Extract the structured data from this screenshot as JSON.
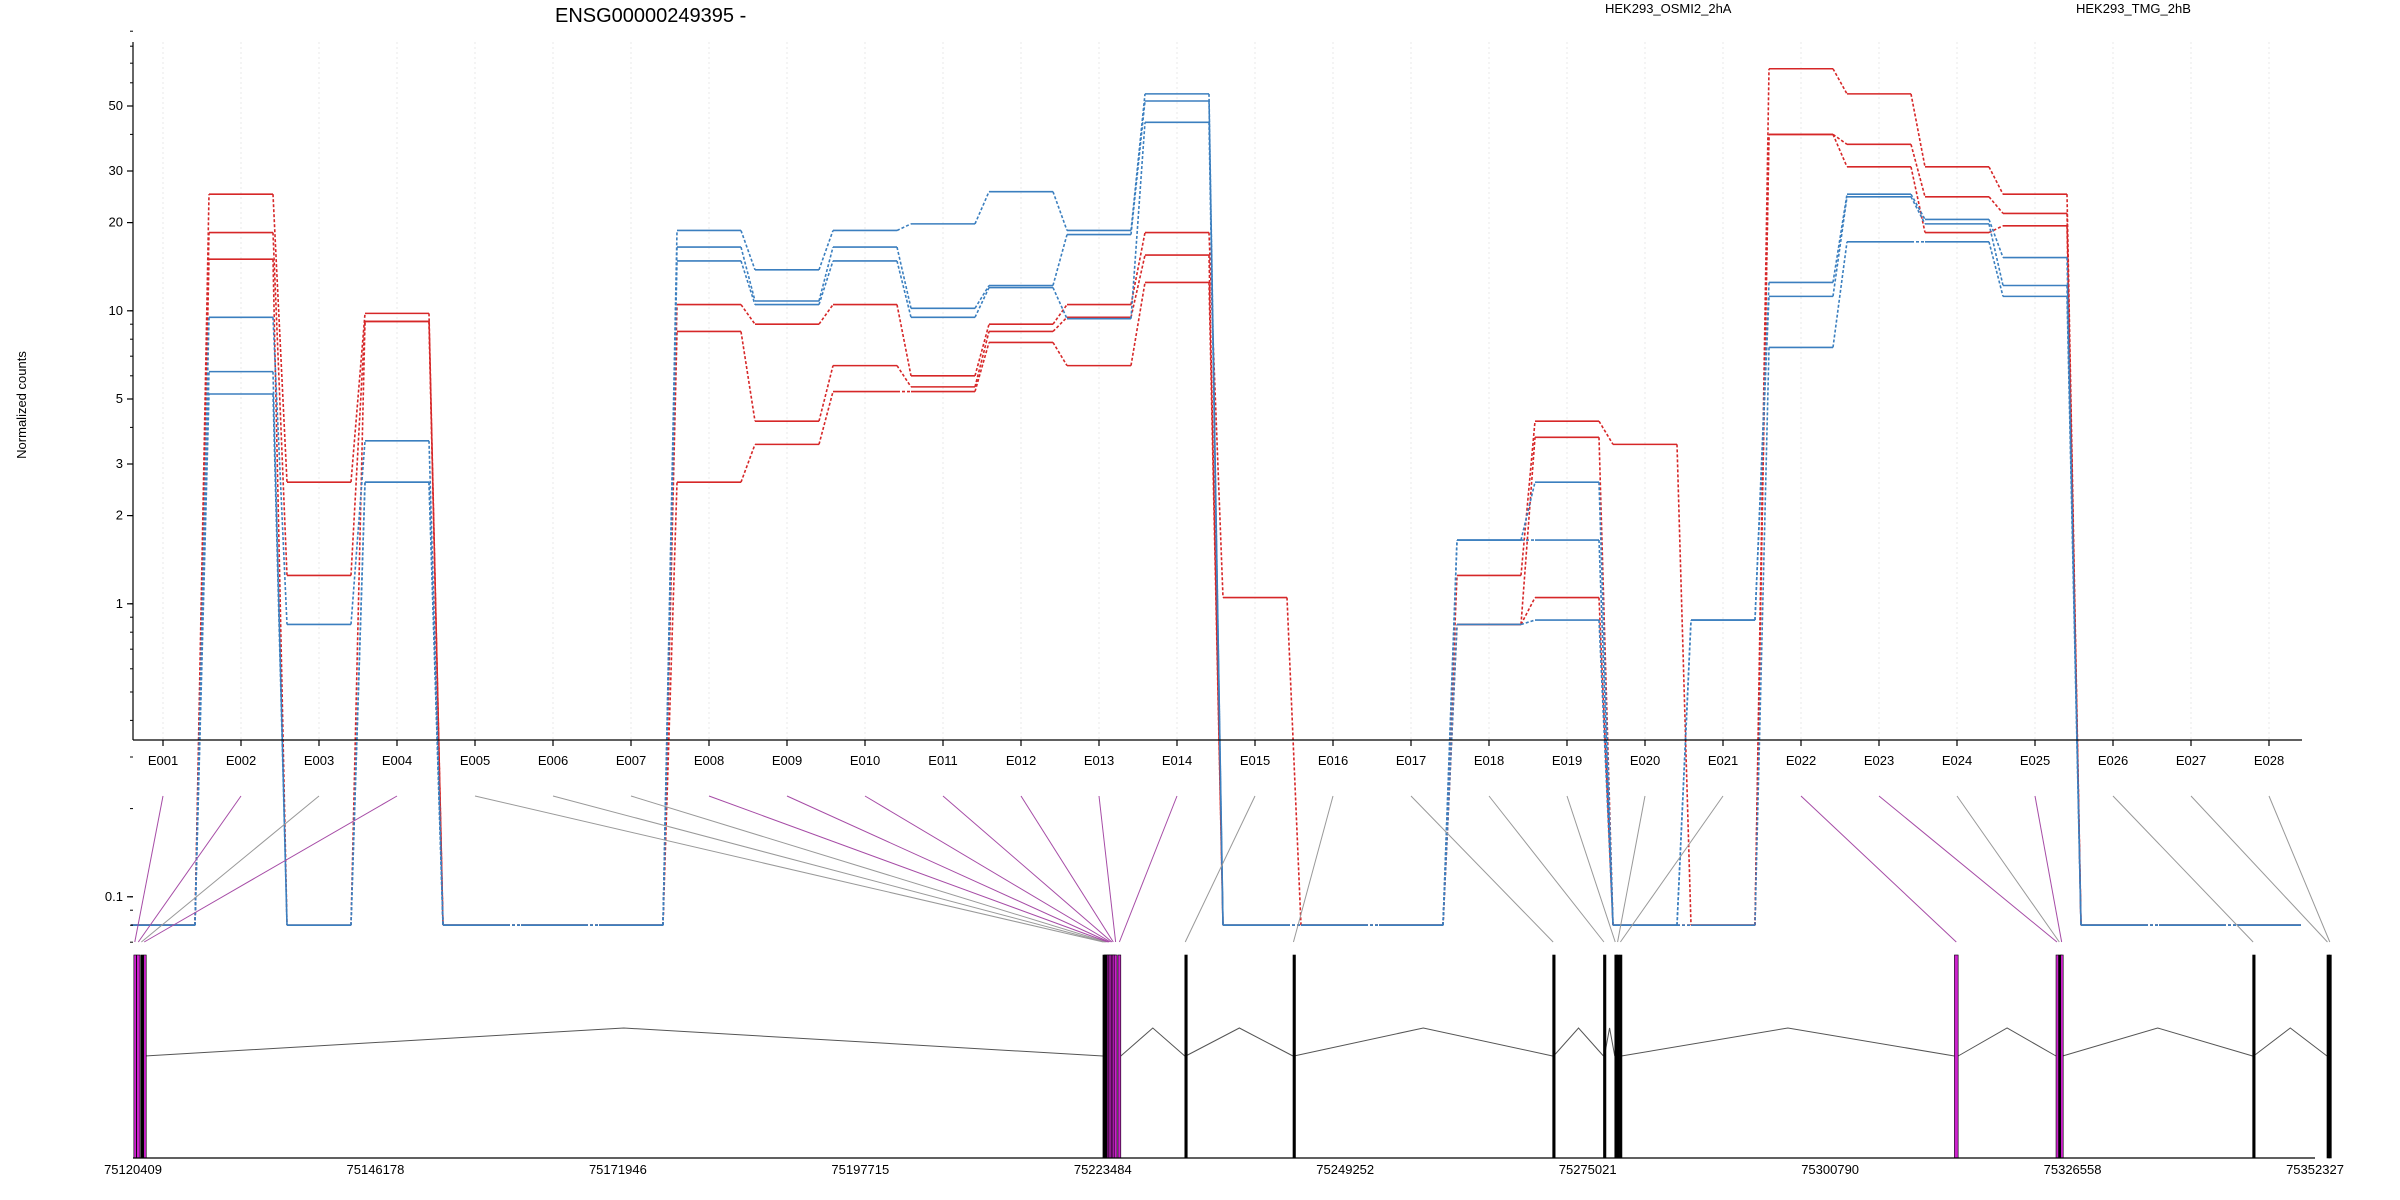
{
  "chart_data": {
    "type": "line",
    "title": "ENSG00000249395 -",
    "ylabel": "Normalized counts",
    "yscale": "log",
    "ylim": [
      0.07,
      90
    ],
    "yticks": [
      0.1,
      1,
      2,
      3,
      5,
      10,
      20,
      30,
      50
    ],
    "categories": [
      "E001",
      "E002",
      "E003",
      "E004",
      "E005",
      "E006",
      "E007",
      "E008",
      "E009",
      "E010",
      "E011",
      "E012",
      "E013",
      "E014",
      "E015",
      "E016",
      "E017",
      "E018",
      "E019",
      "E020",
      "E021",
      "E022",
      "E023",
      "E024",
      "E025",
      "E026",
      "E027",
      "E028"
    ],
    "legend": [
      {
        "label": "HEK293_OSMI2_2hA",
        "color": "#d62728"
      },
      {
        "label": "HEK293_TMG_2hB",
        "color": "#3b7fbf"
      }
    ],
    "series": [
      {
        "group": "HEK293_OSMI2_2hA",
        "color": "#d62728",
        "values": [
          0.08,
          25,
          2.6,
          9.8,
          0.08,
          0.08,
          0.08,
          10.5,
          9,
          10.5,
          6,
          9,
          10.5,
          18.5,
          1.05,
          0.08,
          0.08,
          1.25,
          4.2,
          3.5,
          0.08,
          67,
          55,
          31,
          25,
          0.08,
          0.08,
          0.08
        ]
      },
      {
        "group": "HEK293_OSMI2_2hA",
        "color": "#d62728",
        "values": [
          0.08,
          18.5,
          1.25,
          9.2,
          0.08,
          0.08,
          0.08,
          8.5,
          4.2,
          6.5,
          5.5,
          8.5,
          9.5,
          15.5,
          0.08,
          0.08,
          0.08,
          0.85,
          3.7,
          0.08,
          0.08,
          40,
          37,
          24.5,
          21.5,
          0.08,
          0.08,
          0.08
        ]
      },
      {
        "group": "HEK293_OSMI2_2hA",
        "color": "#d62728",
        "values": [
          0.08,
          15,
          0.08,
          9.2,
          0.08,
          0.08,
          0.08,
          2.6,
          3.5,
          5.3,
          5.3,
          7.8,
          6.5,
          12.5,
          0.08,
          0.08,
          0.08,
          0.85,
          1.05,
          0.08,
          0.08,
          40,
          31,
          18.5,
          19.5,
          0.08,
          0.08,
          0.08
        ]
      },
      {
        "group": "HEK293_TMG_2hB",
        "color": "#3b7fbf",
        "values": [
          0.08,
          9.5,
          0.85,
          3.6,
          0.08,
          0.08,
          0.08,
          18.8,
          13.8,
          18.8,
          19.8,
          25.5,
          18.8,
          55,
          0.08,
          0.08,
          0.08,
          1.65,
          2.6,
          0.08,
          0.88,
          12.5,
          25,
          20.5,
          15.2,
          0.08,
          0.08,
          0.08
        ]
      },
      {
        "group": "HEK293_TMG_2hB",
        "color": "#3b7fbf",
        "values": [
          0.08,
          6.2,
          0.08,
          2.6,
          0.08,
          0.08,
          0.08,
          16.5,
          10.8,
          16.5,
          10.2,
          12.2,
          18.2,
          52,
          0.08,
          0.08,
          0.08,
          1.65,
          1.65,
          0.08,
          0.88,
          11.2,
          24.5,
          19.8,
          12.2,
          0.08,
          0.08,
          0.08
        ]
      },
      {
        "group": "HEK293_TMG_2hB",
        "color": "#3b7fbf",
        "values": [
          0.08,
          5.2,
          0.08,
          2.6,
          0.08,
          0.08,
          0.08,
          14.8,
          10.5,
          14.8,
          9.5,
          12,
          9.4,
          44,
          0.08,
          0.08,
          0.08,
          0.85,
          0.88,
          0.08,
          0.08,
          7.5,
          17.2,
          17.2,
          11.2,
          0.08,
          0.08,
          0.08
        ]
      }
    ],
    "genomic_axis": {
      "tick_labels": [
        "75120409",
        "75146178",
        "75171946",
        "75197715",
        "75223484",
        "75249252",
        "75275021",
        "75300790",
        "75326558",
        "75352327"
      ],
      "range": [
        75120409,
        75352327
      ],
      "exons": [
        {
          "id": "E001",
          "start": 75120500,
          "end": 75120700,
          "highlight": true
        },
        {
          "id": "E002",
          "start": 75120800,
          "end": 75121150,
          "highlight": true
        },
        {
          "id": "E003",
          "start": 75121250,
          "end": 75121350,
          "highlight": false
        },
        {
          "id": "E004",
          "start": 75121550,
          "end": 75121650,
          "highlight": true
        },
        {
          "id": "E005",
          "start": 75223500,
          "end": 75223600,
          "highlight": false
        },
        {
          "id": "E006",
          "start": 75223650,
          "end": 75223750,
          "highlight": false
        },
        {
          "id": "E007",
          "start": 75223800,
          "end": 75223900,
          "highlight": false
        },
        {
          "id": "E008",
          "start": 75223950,
          "end": 75224050,
          "highlight": true
        },
        {
          "id": "E009",
          "start": 75224100,
          "end": 75224200,
          "highlight": true
        },
        {
          "id": "E010",
          "start": 75224250,
          "end": 75224350,
          "highlight": true
        },
        {
          "id": "E011",
          "start": 75224400,
          "end": 75224500,
          "highlight": true
        },
        {
          "id": "E012",
          "start": 75224550,
          "end": 75224650,
          "highlight": true
        },
        {
          "id": "E013",
          "start": 75224700,
          "end": 75225000,
          "highlight": true
        },
        {
          "id": "E014",
          "start": 75225100,
          "end": 75225400,
          "highlight": true
        },
        {
          "id": "E015",
          "start": 75232200,
          "end": 75232300,
          "highlight": false
        },
        {
          "id": "E016",
          "start": 75243700,
          "end": 75243800,
          "highlight": false
        },
        {
          "id": "E017",
          "start": 75271300,
          "end": 75271400,
          "highlight": false
        },
        {
          "id": "E018",
          "start": 75276700,
          "end": 75276800,
          "highlight": false
        },
        {
          "id": "E019",
          "start": 75277900,
          "end": 75278000,
          "highlight": false
        },
        {
          "id": "E020",
          "start": 75278100,
          "end": 75278300,
          "highlight": false
        },
        {
          "id": "E021",
          "start": 75278400,
          "end": 75278600,
          "highlight": false
        },
        {
          "id": "E022",
          "start": 75314000,
          "end": 75314400,
          "highlight": true
        },
        {
          "id": "E023",
          "start": 75324800,
          "end": 75325000,
          "highlight": true
        },
        {
          "id": "E024",
          "start": 75325100,
          "end": 75325200,
          "highlight": false
        },
        {
          "id": "E025",
          "start": 75325300,
          "end": 75325500,
          "highlight": true
        },
        {
          "id": "E026",
          "start": 75345700,
          "end": 75345800,
          "highlight": false
        },
        {
          "id": "E027",
          "start": 75353600,
          "end": 75353700,
          "highlight": false
        },
        {
          "id": "E028",
          "start": 75353800,
          "end": 75354000,
          "highlight": false
        }
      ]
    },
    "colors": {
      "exon": "#000000",
      "exon_highlight": "#cc22cc",
      "connector": "#999999",
      "connector_highlight": "#a64ca6",
      "intron": "#555555"
    }
  }
}
